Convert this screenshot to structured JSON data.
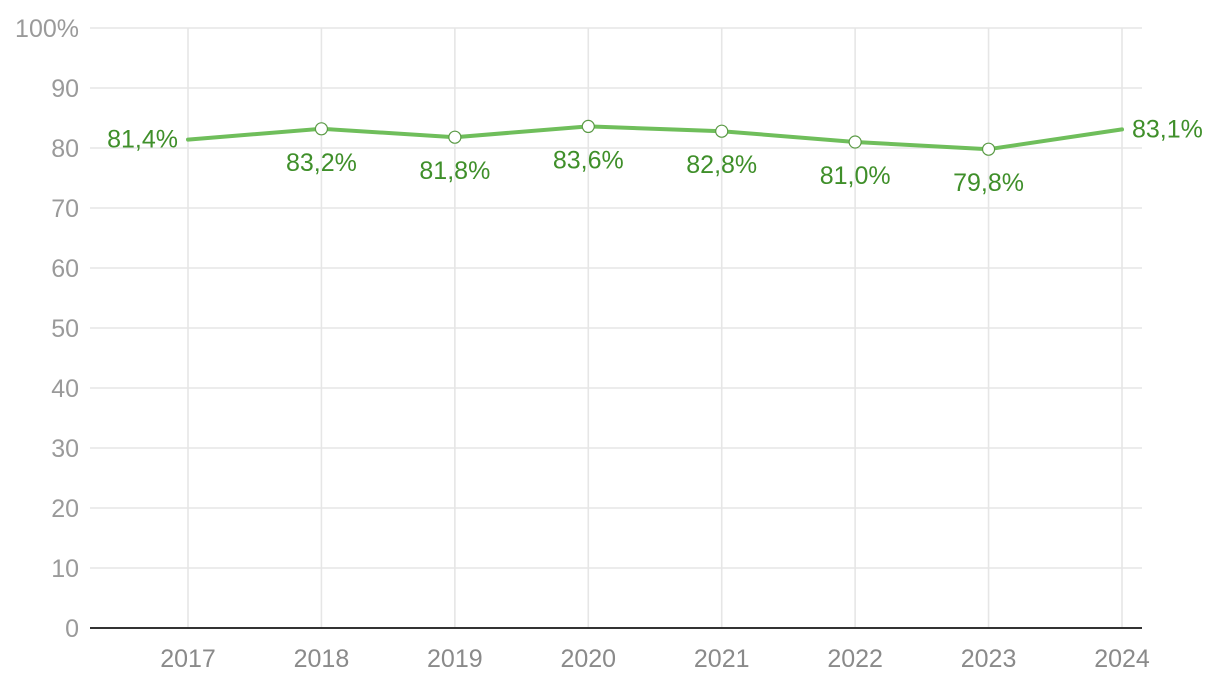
{
  "chart_data": {
    "type": "line",
    "categories": [
      "2017",
      "2018",
      "2019",
      "2020",
      "2021",
      "2022",
      "2023",
      "2024"
    ],
    "series": [
      {
        "values": [
          81.4,
          83.2,
          81.8,
          83.6,
          82.8,
          81.0,
          79.8,
          83.1
        ],
        "labels": [
          "81,4%",
          "83,2%",
          "81,8%",
          "83,6%",
          "82,8%",
          "81,0%",
          "79,8%",
          "83,1%"
        ]
      }
    ],
    "ylim": [
      0,
      100
    ],
    "yticks": [
      "0",
      "10",
      "20",
      "30",
      "40",
      "50",
      "60",
      "70",
      "80",
      "90",
      "100%"
    ],
    "grid": true,
    "colors": {
      "line": "#6fbe5b",
      "label": "#3f8f2a",
      "marker": "#5a9a45"
    }
  }
}
